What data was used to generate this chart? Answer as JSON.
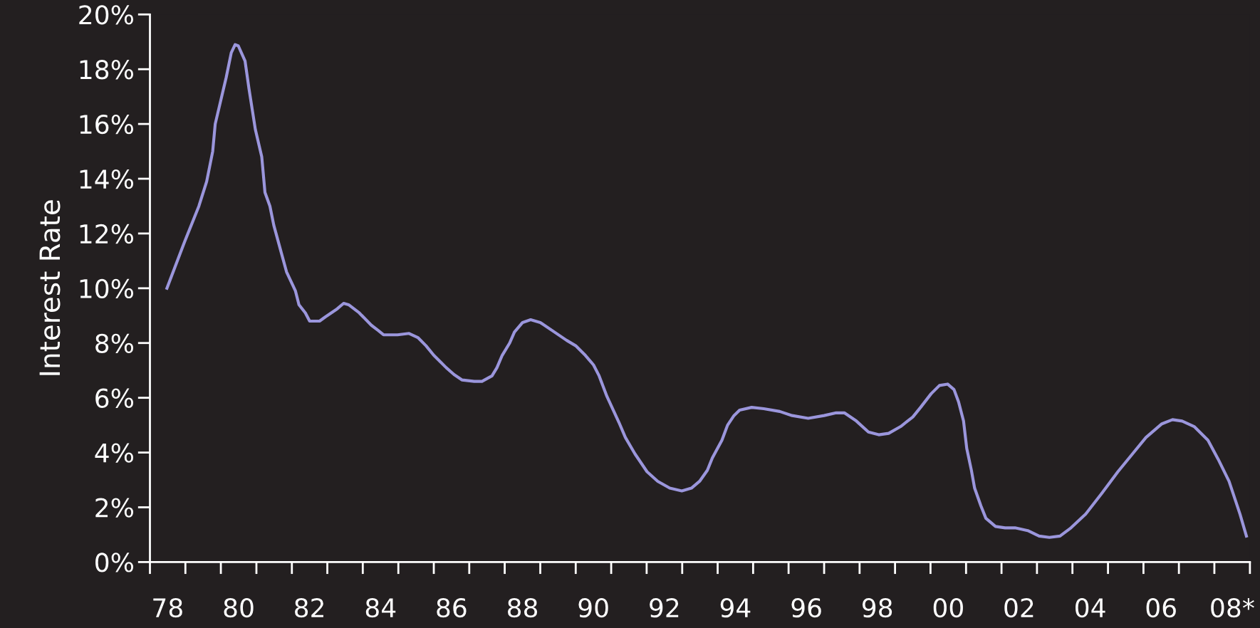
{
  "chart_data": {
    "type": "line",
    "ylabel": "Interest Rate",
    "x": [
      "1978-06-25",
      "1978-12-24",
      "1979-05-20",
      "1979-08-08",
      "1979-10-09",
      "1979-11-04",
      "1980-02-25",
      "1980-04-17",
      "1980-05-27",
      "1980-06-29",
      "1980-09-06",
      "1980-10-16",
      "1980-12-21",
      "1981-02-25",
      "1981-03-30",
      "1981-05-20",
      "1981-06-29",
      "1981-09-14",
      "1981-11-07",
      "1982-02-07",
      "1982-03-15",
      "1982-05-20",
      "1982-07-03",
      "1982-10-13",
      "1982-12-10",
      "1983-04-13",
      "1983-06-18",
      "1983-08-08",
      "1983-11-26",
      "1984-03-29",
      "1984-06-10",
      "1984-08-01",
      "1984-12-24",
      "1985-04-21",
      "1985-07-21",
      "1985-10-13",
      "1986-01-01",
      "1986-05-09",
      "1986-07-28",
      "1986-10-20",
      "1987-02-21",
      "1987-05-12",
      "1987-08-23",
      "1987-10-13",
      "1987-12-06",
      "1988-02-21",
      "1988-04-10",
      "1988-07-03",
      "1988-09-24",
      "1989-01-01",
      "1989-05-27",
      "1989-09-28",
      "1990-01-01",
      "1990-04-10",
      "1990-07-03",
      "1990-08-30",
      "1990-11-18",
      "1991-03-22",
      "1991-05-27",
      "1991-09-03",
      "1992-01-05",
      "1992-04-24",
      "1992-08-26",
      "1992-12-28",
      "1993-04-06",
      "1993-06-29",
      "1993-09-17",
      "1993-11-07",
      "1994-02-14",
      "1994-04-13",
      "1994-06-18",
      "1994-08-15",
      "1994-12-17",
      "1995-04-21",
      "1995-10-02",
      "1996-02-07",
      "1996-07-21",
      "1997-01-01",
      "1997-05-05",
      "1997-07-28",
      "1997-11-29",
      "1998-04-02",
      "1998-07-17",
      "1998-10-27",
      "1999-02-28",
      "1999-07-03",
      "1999-09-21",
      "2000-01-08",
      "2000-04-02",
      "2000-06-25",
      "2000-08-30",
      "2000-10-16",
      "2000-12-06",
      "2001-01-08",
      "2001-02-25",
      "2001-03-30",
      "2001-06-03",
      "2001-07-24",
      "2001-10-31",
      "2002-02-07",
      "2002-05-20",
      "2002-09-28",
      "2003-01-23",
      "2003-05-09",
      "2003-08-26",
      "2003-12-17",
      "2004-05-16",
      "2004-10-27",
      "2005-04-13",
      "2005-09-10",
      "2006-01-27",
      "2006-07-10",
      "2006-10-27",
      "2007-02-03",
      "2007-06-07",
      "2007-10-27",
      "2008-02-10",
      "2008-05-31",
      "2008-09-21",
      "2008-11-26"
    ],
    "series": [
      {
        "color": "#9b96dc",
        "values": [
          10.0,
          11.7,
          13.0,
          13.9,
          15.0,
          16.0,
          17.7,
          18.6,
          18.9,
          18.85,
          18.3,
          17.3,
          15.8,
          14.8,
          13.5,
          13.0,
          12.3,
          11.3,
          10.6,
          9.9,
          9.4,
          9.1,
          8.8,
          8.8,
          8.95,
          9.25,
          9.45,
          9.4,
          9.1,
          8.65,
          8.45,
          8.3,
          8.3,
          8.35,
          8.2,
          7.9,
          7.55,
          7.1,
          6.85,
          6.65,
          6.6,
          6.6,
          6.8,
          7.1,
          7.55,
          8.0,
          8.4,
          8.75,
          8.85,
          8.75,
          8.4,
          8.1,
          7.9,
          7.55,
          7.2,
          6.8,
          6.05,
          5.1,
          4.55,
          3.95,
          3.3,
          2.95,
          2.7,
          2.6,
          2.7,
          2.95,
          3.35,
          3.8,
          4.45,
          5.0,
          5.35,
          5.55,
          5.65,
          5.6,
          5.5,
          5.35,
          5.25,
          5.35,
          5.45,
          5.45,
          5.15,
          4.75,
          4.65,
          4.7,
          4.95,
          5.3,
          5.65,
          6.15,
          6.45,
          6.5,
          6.3,
          5.85,
          5.15,
          4.15,
          3.35,
          2.7,
          2.05,
          1.6,
          1.3,
          1.25,
          1.25,
          1.15,
          0.95,
          0.9,
          0.95,
          1.25,
          1.75,
          2.5,
          3.3,
          3.95,
          4.55,
          5.05,
          5.2,
          5.15,
          4.95,
          4.45,
          3.75,
          2.95,
          1.75,
          0.95
        ]
      }
    ],
    "xlim": [
      "1978-01-01",
      "2009-01-01"
    ],
    "xticks": [
      {
        "value": "1978-07-02",
        "label": "78"
      },
      {
        "value": "1980-07-02",
        "label": "80"
      },
      {
        "value": "1982-07-02",
        "label": "82"
      },
      {
        "value": "1984-07-02",
        "label": "84"
      },
      {
        "value": "1986-07-02",
        "label": "86"
      },
      {
        "value": "1988-07-02",
        "label": "88"
      },
      {
        "value": "1990-07-02",
        "label": "90"
      },
      {
        "value": "1992-07-02",
        "label": "92"
      },
      {
        "value": "1994-07-02",
        "label": "94"
      },
      {
        "value": "1996-07-02",
        "label": "96"
      },
      {
        "value": "1998-07-02",
        "label": "98"
      },
      {
        "value": "2000-07-02",
        "label": "00"
      },
      {
        "value": "2002-07-02",
        "label": "02"
      },
      {
        "value": "2004-07-02",
        "label": "04"
      },
      {
        "value": "2006-07-02",
        "label": "06"
      },
      {
        "value": "2008-07-02",
        "label": "08*"
      }
    ],
    "ylim": [
      0,
      20
    ],
    "yticks": [
      {
        "value": 0,
        "label": "0%"
      },
      {
        "value": 2,
        "label": "2%"
      },
      {
        "value": 4,
        "label": "4%"
      },
      {
        "value": 6,
        "label": "6%"
      },
      {
        "value": 8,
        "label": "8%"
      },
      {
        "value": 10,
        "label": "10%"
      },
      {
        "value": 12,
        "label": "12%"
      },
      {
        "value": 14,
        "label": "14%"
      },
      {
        "value": 16,
        "label": "16%"
      },
      {
        "value": 18,
        "label": "18%"
      },
      {
        "value": 20,
        "label": "20%"
      }
    ],
    "grid": false,
    "legend": false,
    "marker": "none",
    "line_style": "solid"
  }
}
